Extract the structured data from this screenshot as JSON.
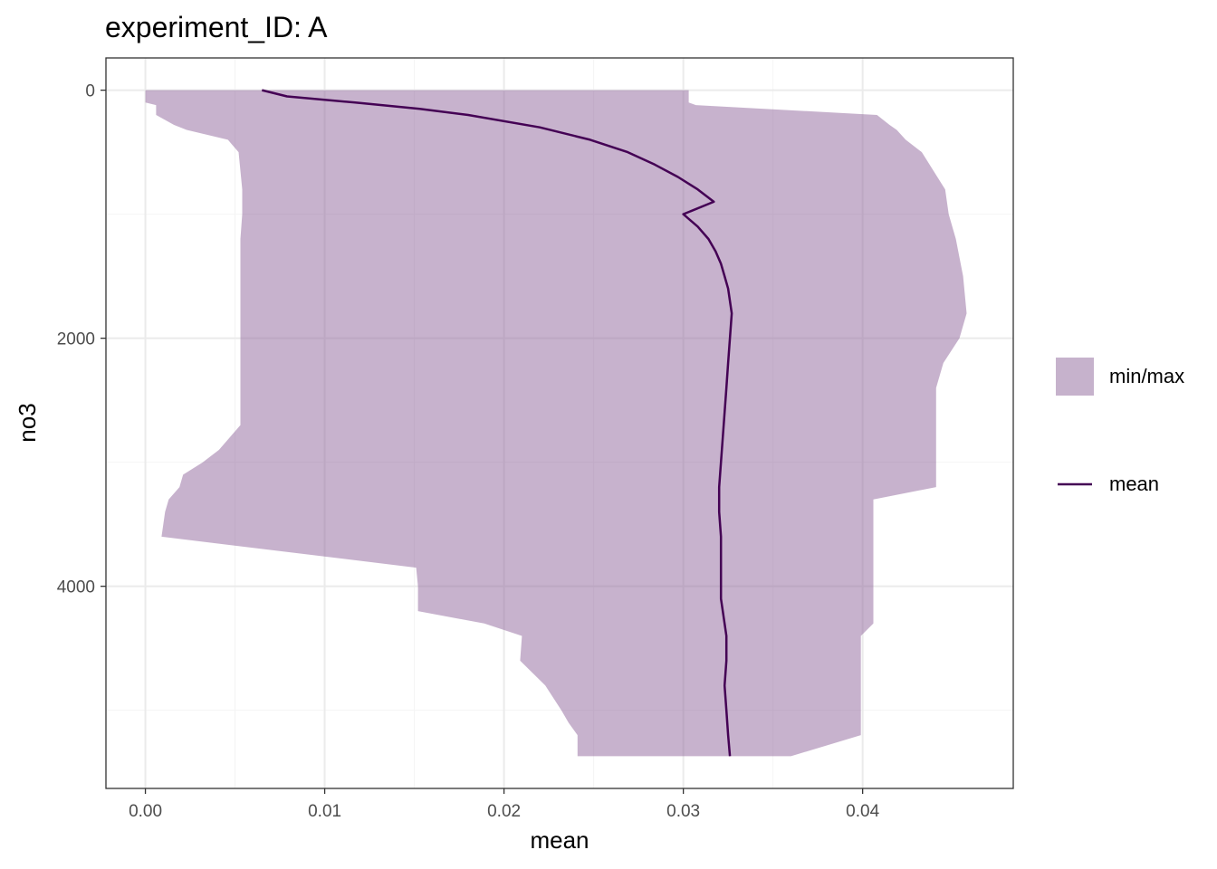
{
  "chart_data": {
    "type": "area",
    "title": "experiment_ID: A",
    "xlabel": "mean",
    "ylabel": "no3",
    "y_reversed": true,
    "xlim": [
      -0.0022,
      0.0484
    ],
    "ylim": [
      -260,
      5630
    ],
    "x_ticks": [
      0.0,
      0.01,
      0.02,
      0.03,
      0.04
    ],
    "x_tick_labels": [
      "0.00",
      "0.01",
      "0.02",
      "0.03",
      "0.04"
    ],
    "y_ticks": [
      0,
      2000,
      4000
    ],
    "y_tick_labels": [
      "0",
      "2000",
      "4000"
    ],
    "grid": true,
    "legend_position": "right",
    "colors": {
      "ribbon": "#c6b2cc",
      "line": "#440154",
      "grid_major": "#ebebeb",
      "grid_minor": "#f4f4f4",
      "panel_border": "#333333"
    },
    "ribbon": {
      "name": "min/max",
      "depth": [
        0,
        100,
        120,
        200,
        280,
        320,
        400,
        500,
        800,
        1000,
        1200,
        1500,
        1800,
        2000,
        2200,
        2400,
        2600,
        2700,
        2900,
        3000,
        3100,
        3200,
        3300,
        3400,
        3600,
        3850,
        4000,
        4100,
        4200,
        4300,
        4400,
        4600,
        4800,
        5000,
        5100,
        5200,
        5370
      ],
      "min": [
        0.0,
        0.0,
        0.0006,
        0.0006,
        0.0016,
        0.0023,
        0.0046,
        0.0052,
        0.0054,
        0.0054,
        0.0053,
        0.0053,
        0.0053,
        0.0053,
        0.0053,
        0.0053,
        0.0053,
        0.0053,
        0.0041,
        0.0032,
        0.0021,
        0.0019,
        0.0013,
        0.0011,
        0.0009,
        0.0151,
        0.0152,
        0.0152,
        0.0152,
        0.0189,
        0.021,
        0.0209,
        0.0223,
        0.0232,
        0.0236,
        0.0241,
        0.0241
      ],
      "max": [
        0.0303,
        0.0303,
        0.0307,
        0.0408,
        0.0415,
        0.0419,
        0.0424,
        0.0433,
        0.0446,
        0.0448,
        0.0452,
        0.0456,
        0.0458,
        0.0454,
        0.0445,
        0.0441,
        0.0441,
        0.0441,
        0.0441,
        0.0441,
        0.0441,
        0.0441,
        0.0406,
        0.0406,
        0.0406,
        0.0406,
        0.0406,
        0.0406,
        0.0406,
        0.0406,
        0.0399,
        0.0399,
        0.0399,
        0.0399,
        0.0399,
        0.0399,
        0.036
      ]
    },
    "series": [
      {
        "name": "mean",
        "depth": [
          0,
          50,
          100,
          150,
          200,
          300,
          400,
          500,
          600,
          700,
          800,
          900,
          1000,
          1100,
          1200,
          1300,
          1400,
          1500,
          1600,
          1800,
          2000,
          2200,
          2400,
          2600,
          2800,
          3000,
          3200,
          3400,
          3600,
          3800,
          4000,
          4100,
          4200,
          4300,
          4400,
          4600,
          4800,
          5000,
          5200,
          5370
        ],
        "mean": [
          0.0065,
          0.0079,
          0.0117,
          0.0153,
          0.018,
          0.022,
          0.0248,
          0.0269,
          0.0284,
          0.0297,
          0.0308,
          0.0317,
          0.03,
          0.0308,
          0.0314,
          0.0318,
          0.0321,
          0.0323,
          0.0325,
          0.0327,
          0.0326,
          0.0325,
          0.0324,
          0.0323,
          0.0322,
          0.0321,
          0.032,
          0.032,
          0.0321,
          0.0321,
          0.0321,
          0.0321,
          0.0322,
          0.0323,
          0.0324,
          0.0324,
          0.0323,
          0.0324,
          0.0325,
          0.0326
        ]
      }
    ],
    "legend": [
      {
        "label": "min/max",
        "kind": "fill"
      },
      {
        "label": "mean",
        "kind": "line"
      }
    ]
  }
}
